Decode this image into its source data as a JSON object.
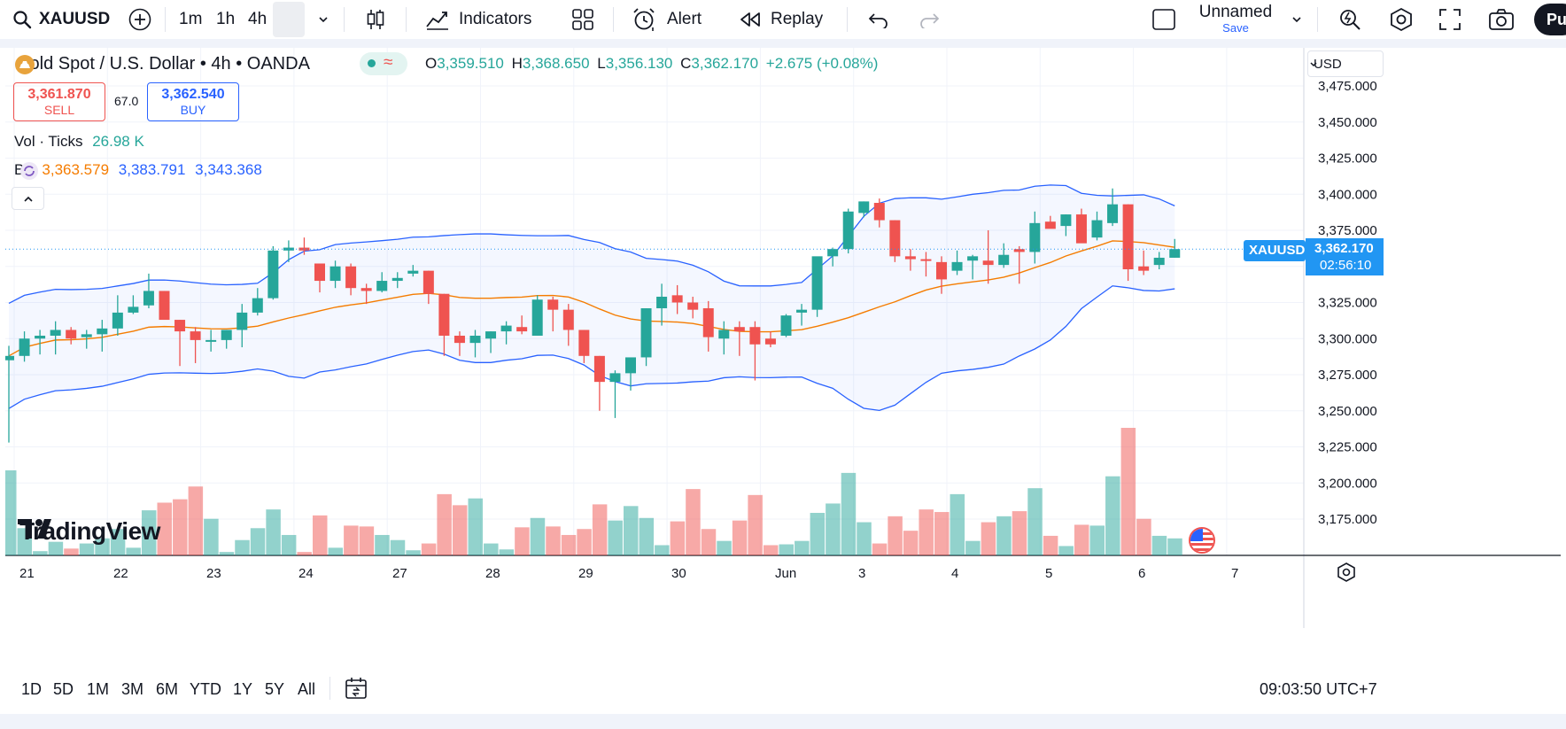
{
  "toolbar": {
    "symbol": "XAUUSD",
    "timeframes": [
      "1m",
      "1h",
      "4h"
    ],
    "active_timeframe": "4h",
    "indicators_label": "Indicators",
    "alert_label": "Alert",
    "replay_label": "Replay",
    "layout_name": "Unnamed",
    "save_label": "Save",
    "publish_label": "Pu"
  },
  "legend": {
    "title": "Gold Spot / U.S. Dollar • 4h • OANDA",
    "o_label": "O",
    "o_value": "3,359.510",
    "h_label": "H",
    "h_value": "3,368.650",
    "l_label": "L",
    "l_value": "3,356.130",
    "c_label": "C",
    "c_value": "3,362.170",
    "change": "+2.675 (+0.08%)",
    "sell_price": "3,361.870",
    "sell_label": "SELL",
    "spread": "67.0",
    "buy_price": "3,362.540",
    "buy_label": "BUY",
    "vol_label": "Vol · Ticks",
    "vol_value": "26.98 K",
    "bb_label": "BB",
    "bb_basis": "3,363.579",
    "bb_upper": "3,383.791",
    "bb_lower": "3,343.368"
  },
  "price_axis": {
    "currency": "USD",
    "ticks": [
      "3,475.000",
      "3,450.000",
      "3,425.000",
      "3,400.000",
      "3,375.000",
      "3,350.000",
      "3,325.000",
      "3,300.000",
      "3,275.000",
      "3,250.000",
      "3,225.000",
      "3,200.000",
      "3,175.000"
    ],
    "last_symbol": "XAUUSD",
    "last_price": "3,362.170",
    "countdown": "02:56:10"
  },
  "time_axis": {
    "labels": [
      "21",
      "22",
      "23",
      "24",
      "27",
      "28",
      "29",
      "30",
      "Jun",
      "3",
      "4",
      "5",
      "6",
      "7"
    ]
  },
  "watermark": "TradingView",
  "bottom": {
    "ranges": [
      "1D",
      "5D",
      "1M",
      "3M",
      "6M",
      "YTD",
      "1Y",
      "5Y",
      "All"
    ],
    "clock": "09:03:50 UTC+7"
  },
  "colors": {
    "up": "#26a69a",
    "down": "#ef5350",
    "bb_basis": "#f57c00",
    "bb_band": "#2962ff",
    "accent": "#2962ff"
  },
  "chart_data": {
    "type": "candlestick",
    "series_price": [
      [
        3285,
        3295,
        3228,
        3288
      ],
      [
        3288,
        3305,
        3284,
        3300
      ],
      [
        3300,
        3306,
        3289,
        3302
      ],
      [
        3302,
        3312,
        3289,
        3306
      ],
      [
        3306,
        3308,
        3296,
        3300
      ],
      [
        3301,
        3306,
        3293,
        3303
      ],
      [
        3303,
        3313,
        3291,
        3307
      ],
      [
        3307,
        3330,
        3302,
        3318
      ],
      [
        3318,
        3330,
        3317,
        3322
      ],
      [
        3323,
        3345,
        3321,
        3333
      ],
      [
        3333,
        3333,
        3314,
        3313
      ],
      [
        3313,
        3313,
        3281,
        3305
      ],
      [
        3305,
        3308,
        3283,
        3299
      ],
      [
        3299,
        3306,
        3291,
        3299
      ],
      [
        3299,
        3306,
        3293,
        3306
      ],
      [
        3306,
        3324,
        3294,
        3318
      ],
      [
        3318,
        3335,
        3316,
        3328
      ],
      [
        3328,
        3364,
        3327,
        3361
      ],
      [
        3361,
        3368,
        3353,
        3363
      ],
      [
        3363,
        3370,
        3358,
        3361
      ],
      [
        3352,
        3352,
        3332,
        3340
      ],
      [
        3340,
        3354,
        3335,
        3350
      ],
      [
        3350,
        3352,
        3330,
        3335
      ],
      [
        3335,
        3338,
        3324,
        3333
      ],
      [
        3333,
        3346,
        3332,
        3340
      ],
      [
        3340,
        3346,
        3335,
        3342
      ],
      [
        3345,
        3351,
        3343,
        3347
      ],
      [
        3347,
        3347,
        3324,
        3331
      ],
      [
        3331,
        3331,
        3288,
        3302
      ],
      [
        3302,
        3305,
        3288,
        3297
      ],
      [
        3297,
        3306,
        3287,
        3302
      ],
      [
        3300,
        3305,
        3290,
        3305
      ],
      [
        3305,
        3312,
        3296,
        3309
      ],
      [
        3308,
        3316,
        3303,
        3305
      ],
      [
        3302,
        3330,
        3302,
        3327
      ],
      [
        3327,
        3329,
        3305,
        3320
      ],
      [
        3320,
        3324,
        3295,
        3306
      ],
      [
        3306,
        3306,
        3283,
        3288
      ],
      [
        3288,
        3288,
        3250,
        3270
      ],
      [
        3270,
        3278,
        3245,
        3276
      ],
      [
        3276,
        3286,
        3264,
        3287
      ],
      [
        3287,
        3321,
        3281,
        3321
      ],
      [
        3321,
        3338,
        3309,
        3329
      ],
      [
        3330,
        3337,
        3317,
        3325
      ],
      [
        3325,
        3329,
        3314,
        3320
      ],
      [
        3321,
        3326,
        3291,
        3301
      ],
      [
        3300,
        3312,
        3289,
        3306
      ],
      [
        3308,
        3312,
        3288,
        3305
      ],
      [
        3308,
        3312,
        3271,
        3296
      ],
      [
        3300,
        3305,
        3294,
        3296
      ],
      [
        3302,
        3317,
        3301,
        3316
      ],
      [
        3318,
        3324,
        3309,
        3320
      ],
      [
        3320,
        3356,
        3315,
        3357
      ],
      [
        3357,
        3363,
        3350,
        3362
      ],
      [
        3362,
        3390,
        3359,
        3388
      ],
      [
        3387,
        3395,
        3384,
        3395
      ],
      [
        3394,
        3397,
        3377,
        3382
      ],
      [
        3382,
        3382,
        3353,
        3357
      ],
      [
        3357,
        3362,
        3347,
        3355
      ],
      [
        3355,
        3360,
        3343,
        3354
      ],
      [
        3353,
        3357,
        3331,
        3341
      ],
      [
        3347,
        3361,
        3344,
        3353
      ],
      [
        3354,
        3358,
        3341,
        3357
      ],
      [
        3354,
        3375,
        3338,
        3351
      ],
      [
        3351,
        3366,
        3349,
        3358
      ],
      [
        3362,
        3364,
        3338,
        3360
      ],
      [
        3360,
        3388,
        3352,
        3380
      ],
      [
        3381,
        3385,
        3377,
        3376
      ],
      [
        3378,
        3386,
        3371,
        3386
      ],
      [
        3386,
        3390,
        3367,
        3366
      ],
      [
        3370,
        3388,
        3368,
        3382
      ],
      [
        3380,
        3404,
        3378,
        3393
      ],
      [
        3393,
        3393,
        3340,
        3348
      ],
      [
        3350,
        3361,
        3344,
        3347
      ],
      [
        3351,
        3360,
        3348,
        3356
      ],
      [
        3356,
        3369,
        3356,
        3362
      ]
    ],
    "volume_relative": [
      1,
      0.32,
      0.05,
      0.16,
      0.08,
      0.14,
      0.2,
      0.31,
      0.09,
      0.53,
      0.62,
      0.66,
      0.81,
      0.43,
      0.04,
      0.18,
      0.32,
      0.54,
      0.24,
      0.04,
      0.47,
      0.09,
      0.35,
      0.34,
      0.24,
      0.18,
      0.06,
      0.14,
      0.72,
      0.59,
      0.67,
      0.14,
      0.07,
      0.33,
      0.44,
      0.34,
      0.24,
      0.31,
      0.6,
      0.41,
      0.58,
      0.44,
      0.12,
      0.4,
      0.78,
      0.31,
      0.17,
      0.41,
      0.71,
      0.12,
      0.13,
      0.17,
      0.5,
      0.61,
      0.97,
      0.39,
      0.14,
      0.46,
      0.29,
      0.54,
      0.51,
      0.72,
      0.17,
      0.39,
      0.46,
      0.52,
      0.79,
      0.23,
      0.11,
      0.36,
      0.35,
      0.93,
      1.5,
      0.43,
      0.23,
      0.2
    ]
  }
}
